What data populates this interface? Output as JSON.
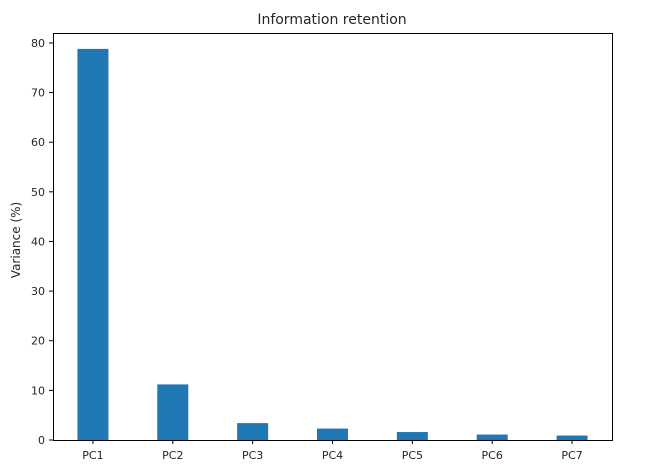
{
  "chart_data": {
    "type": "bar",
    "title": "Information retention",
    "xlabel": "",
    "ylabel": "Variance (%)",
    "categories": [
      "PC1",
      "PC2",
      "PC3",
      "PC4",
      "PC5",
      "PC6",
      "PC7"
    ],
    "values": [
      78.8,
      11.2,
      3.4,
      2.3,
      1.6,
      1.1,
      0.9
    ],
    "ylim": [
      0,
      82
    ],
    "yticks": [
      0,
      10,
      20,
      30,
      40,
      50,
      60,
      70,
      80
    ],
    "grid": false,
    "bar_color": "#1f77b4"
  }
}
